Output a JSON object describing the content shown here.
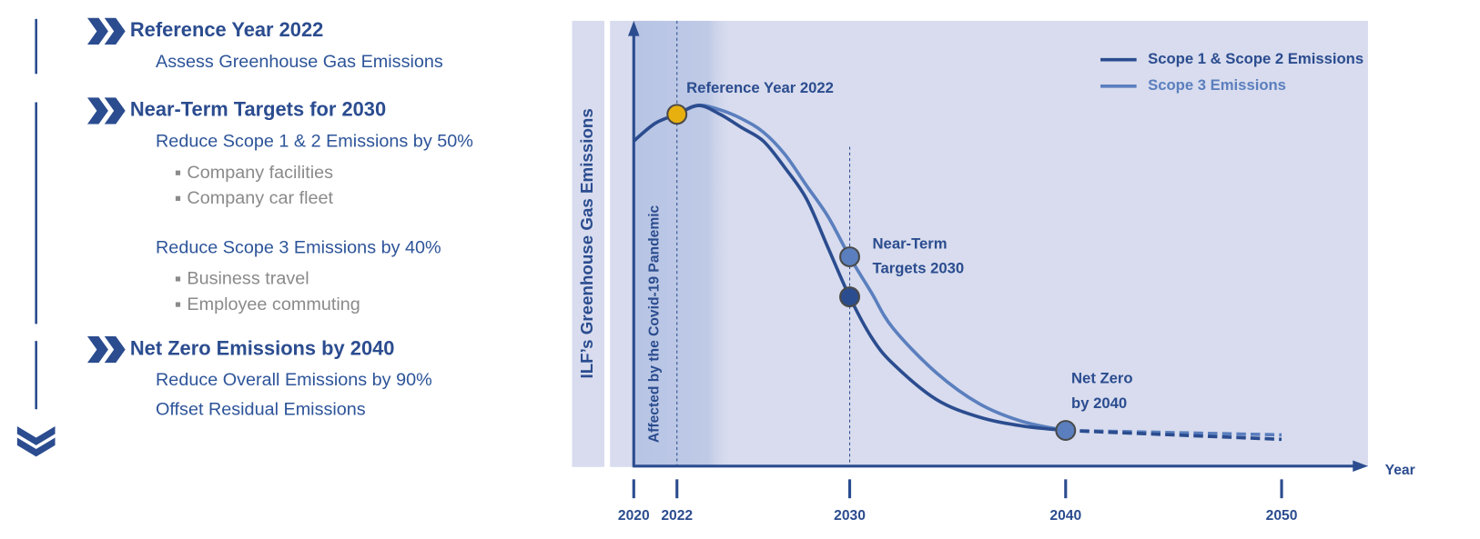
{
  "sidebar": {
    "sections": [
      {
        "title": "Reference Year 2022",
        "lines": [
          {
            "text": "Assess Greenhouse Gas Emissions",
            "bullets": []
          }
        ]
      },
      {
        "title": "Near-Term Targets for 2030",
        "lines": [
          {
            "text": "Reduce Scope 1 & 2 Emissions by 50%",
            "bullets": [
              "Company facilities",
              "Company car fleet"
            ]
          },
          {
            "text": "Reduce Scope 3 Emissions by 40%",
            "bullets": [
              "Business travel",
              "Employee commuting"
            ]
          }
        ]
      },
      {
        "title": "Net Zero Emissions by 2040",
        "lines": [
          {
            "text": "Reduce Overall Emissions by 90%",
            "bullets": []
          },
          {
            "text": "Offset Residual Emissions",
            "bullets": []
          }
        ]
      }
    ]
  },
  "chart_data": {
    "type": "line",
    "ylabel": "ILF’s Greenhouse Gas Emissions",
    "xlabel": "Year",
    "x": [
      2020,
      2021,
      2022,
      2023,
      2024,
      2025,
      2026,
      2027,
      2028,
      2029,
      2030,
      2031,
      2032,
      2034,
      2036,
      2038,
      2040,
      2045,
      2050
    ],
    "series": [
      {
        "name": "Scope 1 & Scope 2 Emissions",
        "color": "#2b4c8f",
        "values": [
          73,
          77,
          79,
          81,
          79,
          76,
          73,
          67,
          60,
          49,
          38,
          29,
          23,
          15,
          11,
          9,
          8,
          7,
          6
        ]
      },
      {
        "name": "Scope 3 Emissions",
        "color": "#5b7fbe",
        "values": [
          null,
          null,
          79,
          81,
          80,
          78,
          75,
          70,
          63,
          56,
          47,
          39,
          31,
          21,
          14,
          10,
          8,
          7.5,
          7
        ]
      }
    ],
    "dashed_after": 2040,
    "xlim": [
      2020,
      2054
    ],
    "ylim": [
      0,
      100
    ],
    "xticks": [
      2020,
      2022,
      2030,
      2040,
      2050
    ],
    "vlines": [
      2022,
      2030
    ],
    "shade": {
      "from": 2020,
      "to": 2023.5,
      "label": "Affected by the Covid-19 Pandemic"
    },
    "markers": [
      {
        "x": 2022,
        "value": 79,
        "color": "#e8b00f",
        "label": [
          "Reference Year 2022"
        ]
      },
      {
        "x": 2030,
        "value": 47,
        "color": "#5b7fbe",
        "label": [
          "Near-Term",
          "Targets 2030"
        ]
      },
      {
        "x": 2030,
        "value": 38,
        "color": "#2b4c8f"
      },
      {
        "x": 2040,
        "value": 8,
        "color": "#5b7fbe",
        "label": [
          "Net Zero",
          "by 2040"
        ]
      }
    ],
    "legend": "top-right"
  }
}
